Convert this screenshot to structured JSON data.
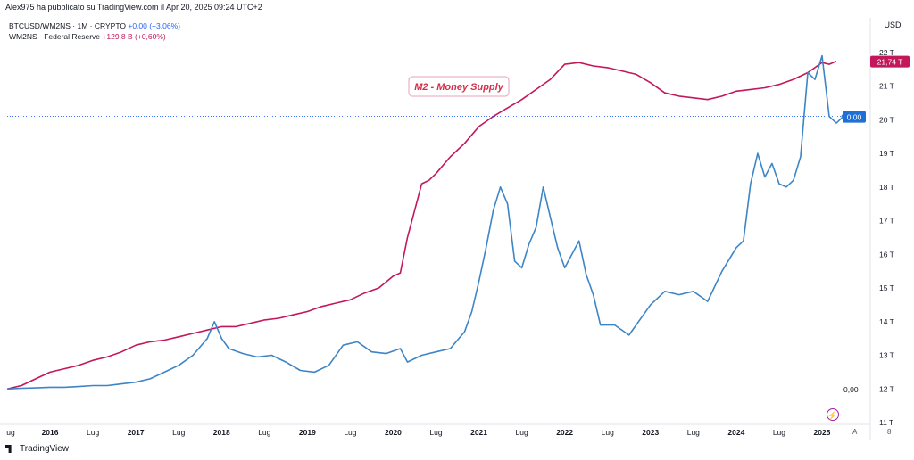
{
  "header": {
    "caption": "Alex975 ha pubblicato su TradingView.com il Apr 20, 2025 09:24 UTC+2"
  },
  "legend": {
    "series1_name": "BTCUSD/WM2NS · 1M · CRYPTO",
    "series1_value": "+0,00 (+3,06%)",
    "series2_name": "WM2NS · Federal Reserve",
    "series2_value": "+129,8 B (+0,60%)"
  },
  "footer": {
    "brand": "TradingView",
    "corner_a": "A",
    "corner_b": "8"
  },
  "colors": {
    "m2": "#c2185b",
    "btc": "#3d85c6",
    "dotted": "#2962ff",
    "badge_blue": "#1f6fd6",
    "badge_red": "#c2185b"
  },
  "icons": {
    "lightning": "lightning-icon"
  },
  "chart_data": {
    "type": "line",
    "right_axis": {
      "unit_label": "USD",
      "ticks": [
        "22 T",
        "21 T",
        "20 T",
        "19 T",
        "18 T",
        "17 T",
        "16 T",
        "15 T",
        "14 T",
        "13 T",
        "12 T",
        "11 T"
      ],
      "tick_values": [
        22,
        21,
        20,
        19,
        18,
        17,
        16,
        15,
        14,
        13,
        12,
        11
      ],
      "ylim": [
        11,
        22.5
      ]
    },
    "x_axis": {
      "tick_labels": [
        "ug",
        "2016",
        "Lug",
        "2017",
        "Lug",
        "2018",
        "Lug",
        "2019",
        "Lug",
        "2020",
        "Lug",
        "2021",
        "Lug",
        "2022",
        "Lug",
        "2023",
        "Lug",
        "2024",
        "Lug",
        "2025"
      ],
      "tick_dates": [
        "2015-07",
        "2016-01",
        "2016-07",
        "2017-01",
        "2017-07",
        "2018-01",
        "2018-07",
        "2019-01",
        "2019-07",
        "2020-01",
        "2020-07",
        "2021-01",
        "2021-07",
        "2022-01",
        "2022-07",
        "2023-01",
        "2023-07",
        "2024-01",
        "2024-07",
        "2025-01"
      ],
      "range": [
        "2015-07",
        "2025-04"
      ]
    },
    "annotation": "M2 - Money Supply",
    "price_badges": {
      "m2_last": "21,74 T",
      "btc_last": "0,00"
    },
    "left_label_btc": "0,00",
    "series": [
      {
        "name": "WM2NS · Federal Reserve",
        "color": "#c2185b",
        "x": [
          "2015-07",
          "2015-09",
          "2015-11",
          "2016-01",
          "2016-03",
          "2016-05",
          "2016-07",
          "2016-09",
          "2016-11",
          "2017-01",
          "2017-03",
          "2017-05",
          "2017-07",
          "2017-09",
          "2017-11",
          "2018-01",
          "2018-03",
          "2018-05",
          "2018-07",
          "2018-09",
          "2018-11",
          "2019-01",
          "2019-03",
          "2019-05",
          "2019-07",
          "2019-09",
          "2019-11",
          "2020-01",
          "2020-02",
          "2020-03",
          "2020-04",
          "2020-05",
          "2020-06",
          "2020-07",
          "2020-09",
          "2020-11",
          "2021-01",
          "2021-03",
          "2021-05",
          "2021-07",
          "2021-09",
          "2021-11",
          "2022-01",
          "2022-03",
          "2022-05",
          "2022-07",
          "2022-09",
          "2022-11",
          "2023-01",
          "2023-03",
          "2023-05",
          "2023-07",
          "2023-09",
          "2023-11",
          "2024-01",
          "2024-03",
          "2024-05",
          "2024-07",
          "2024-09",
          "2024-11",
          "2025-01",
          "2025-02",
          "2025-03"
        ],
        "values": [
          12.0,
          12.1,
          12.3,
          12.5,
          12.6,
          12.7,
          12.85,
          12.95,
          13.1,
          13.3,
          13.4,
          13.45,
          13.55,
          13.65,
          13.75,
          13.85,
          13.85,
          13.95,
          14.05,
          14.1,
          14.2,
          14.3,
          14.45,
          14.55,
          14.65,
          14.85,
          15.0,
          15.35,
          15.45,
          16.5,
          17.3,
          18.1,
          18.2,
          18.4,
          18.9,
          19.3,
          19.8,
          20.1,
          20.35,
          20.6,
          20.9,
          21.2,
          21.65,
          21.7,
          21.6,
          21.55,
          21.45,
          21.35,
          21.1,
          20.8,
          20.7,
          20.65,
          20.6,
          20.7,
          20.85,
          20.9,
          20.95,
          21.05,
          21.2,
          21.4,
          21.7,
          21.65,
          21.74
        ]
      },
      {
        "name": "BTCUSD/WM2NS",
        "color": "#3d85c6",
        "x": [
          "2015-07",
          "2015-09",
          "2015-11",
          "2016-01",
          "2016-03",
          "2016-05",
          "2016-07",
          "2016-09",
          "2016-11",
          "2017-01",
          "2017-03",
          "2017-05",
          "2017-07",
          "2017-09",
          "2017-11",
          "2017-12",
          "2018-01",
          "2018-02",
          "2018-04",
          "2018-06",
          "2018-08",
          "2018-10",
          "2018-12",
          "2019-02",
          "2019-04",
          "2019-06",
          "2019-08",
          "2019-10",
          "2019-12",
          "2020-02",
          "2020-03",
          "2020-05",
          "2020-07",
          "2020-09",
          "2020-11",
          "2020-12",
          "2021-01",
          "2021-02",
          "2021-03",
          "2021-04",
          "2021-05",
          "2021-06",
          "2021-07",
          "2021-08",
          "2021-09",
          "2021-10",
          "2021-11",
          "2021-12",
          "2022-01",
          "2022-03",
          "2022-04",
          "2022-05",
          "2022-06",
          "2022-08",
          "2022-10",
          "2022-12",
          "2023-01",
          "2023-03",
          "2023-05",
          "2023-07",
          "2023-09",
          "2023-11",
          "2024-01",
          "2024-02",
          "2024-03",
          "2024-04",
          "2024-05",
          "2024-06",
          "2024-07",
          "2024-08",
          "2024-09",
          "2024-10",
          "2024-11",
          "2024-12",
          "2025-01",
          "2025-02",
          "2025-03",
          "2025-04"
        ],
        "values": [
          12.0,
          12.02,
          12.03,
          12.05,
          12.05,
          12.07,
          12.1,
          12.1,
          12.15,
          12.2,
          12.3,
          12.5,
          12.7,
          13.0,
          13.5,
          14.0,
          13.5,
          13.2,
          13.05,
          12.95,
          13.0,
          12.8,
          12.55,
          12.5,
          12.7,
          13.3,
          13.4,
          13.1,
          13.05,
          13.2,
          12.8,
          13.0,
          13.1,
          13.2,
          13.7,
          14.3,
          15.2,
          16.2,
          17.3,
          18.0,
          17.5,
          15.8,
          15.6,
          16.3,
          16.8,
          18.0,
          17.1,
          16.2,
          15.6,
          16.4,
          15.4,
          14.8,
          13.9,
          13.9,
          13.6,
          14.2,
          14.5,
          14.9,
          14.8,
          14.9,
          14.6,
          15.5,
          16.2,
          16.4,
          18.1,
          19.0,
          18.3,
          18.7,
          18.1,
          18.0,
          18.2,
          18.9,
          21.4,
          21.2,
          21.9,
          20.1,
          19.9,
          20.1
        ]
      }
    ],
    "grid": false,
    "legend_position": "top-left"
  }
}
